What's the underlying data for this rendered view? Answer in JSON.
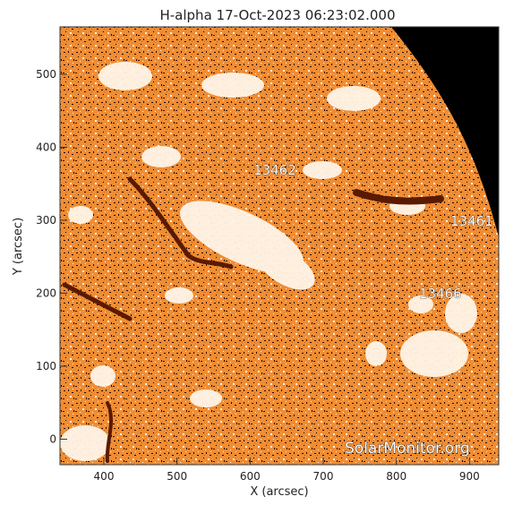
{
  "title": "H-alpha 17-Oct-2023 06:23:02.000",
  "x_axis": {
    "label": "X (arcsec)",
    "ticks": [
      "400",
      "500",
      "600",
      "700",
      "800",
      "900"
    ],
    "range": [
      340,
      940
    ]
  },
  "y_axis": {
    "label": "Y (arcsec)",
    "ticks": [
      "0",
      "100",
      "200",
      "300",
      "400",
      "500"
    ],
    "range": [
      -35,
      565
    ]
  },
  "regions": [
    {
      "id": "13462",
      "label": "13462"
    },
    {
      "id": "13461",
      "label": "13461"
    },
    {
      "id": "13466",
      "label": "13466"
    }
  ],
  "watermark": "SolarMonitor.org",
  "colors": {
    "disk_base": "#ee8a2e",
    "disk_dark": "#5a1a00",
    "plage": "#fff6ea",
    "space": "#000000"
  }
}
